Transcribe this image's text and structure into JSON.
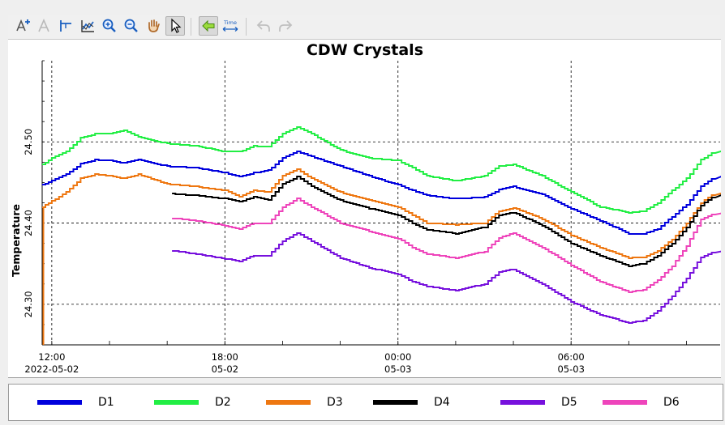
{
  "toolbar": {
    "buttons": [
      {
        "name": "add-label-icon",
        "enabled": true
      },
      {
        "name": "text-label-icon",
        "enabled": false
      },
      {
        "name": "axis-cursor-icon",
        "enabled": true
      },
      {
        "name": "chart-settings-icon",
        "enabled": true
      },
      {
        "name": "zoom-in-icon",
        "enabled": true
      },
      {
        "name": "zoom-out-icon",
        "enabled": true
      },
      {
        "name": "pan-hand-icon",
        "enabled": true
      },
      {
        "name": "pointer-icon",
        "enabled": true,
        "active": true
      },
      {
        "name": "back-arrow-icon",
        "enabled": true,
        "active": true
      },
      {
        "name": "time-scale-icon",
        "enabled": true,
        "label": "Time"
      },
      {
        "name": "undo-icon",
        "enabled": false
      },
      {
        "name": "redo-icon",
        "enabled": false
      }
    ]
  },
  "colors": {
    "D1": "#0000dd",
    "D2": "#22ee44",
    "D3": "#ee7711",
    "D4": "#000000",
    "D5": "#7711dd",
    "D6": "#ee44bb",
    "marker": "#ee7711"
  },
  "chart_data": {
    "type": "line",
    "title": "CDW Crystals",
    "ylabel": "Temperature",
    "xlabel": "",
    "ylim": [
      24.25,
      24.6
    ],
    "xlim": [
      "2022-05-02 11:40",
      "2022-05-03 11:10"
    ],
    "grid": true,
    "legend_position": "bottom",
    "y_ticks": [
      "24.30",
      "24.40",
      "24.50"
    ],
    "x_ticks": [
      {
        "time": "2022-05-02 12:00",
        "line1": "12:00",
        "line2": "2022-05-02"
      },
      {
        "time": "2022-05-02 18:00",
        "line1": "18:00",
        "line2": "05-02"
      },
      {
        "time": "2022-05-03 00:00",
        "line1": "00:00",
        "line2": "05-03"
      },
      {
        "time": "2022-05-03 06:00",
        "line1": "06:00",
        "line2": "05-03"
      }
    ],
    "series": [
      {
        "name": "D1",
        "points": [
          [
            "2022-05-02 11:40",
            24.447
          ],
          [
            "2022-05-02 12:00",
            24.452
          ],
          [
            "2022-05-02 12:30",
            24.46
          ],
          [
            "2022-05-02 13:00",
            24.473
          ],
          [
            "2022-05-02 13:30",
            24.478
          ],
          [
            "2022-05-02 14:00",
            24.477
          ],
          [
            "2022-05-02 14:30",
            24.474
          ],
          [
            "2022-05-02 15:00",
            24.478
          ],
          [
            "2022-05-02 16:00",
            24.47
          ],
          [
            "2022-05-02 17:00",
            24.468
          ],
          [
            "2022-05-02 18:00",
            24.462
          ],
          [
            "2022-05-02 18:30",
            24.457
          ],
          [
            "2022-05-02 19:00",
            24.462
          ],
          [
            "2022-05-02 19:30",
            24.465
          ],
          [
            "2022-05-02 20:00",
            24.48
          ],
          [
            "2022-05-02 20:30",
            24.488
          ],
          [
            "2022-05-02 21:00",
            24.482
          ],
          [
            "2022-05-02 22:00",
            24.47
          ],
          [
            "2022-05-02 23:00",
            24.458
          ],
          [
            "2022-05-03 00:00",
            24.447
          ],
          [
            "2022-05-03 00:30",
            24.44
          ],
          [
            "2022-05-03 01:00",
            24.434
          ],
          [
            "2022-05-03 02:00",
            24.43
          ],
          [
            "2022-05-03 03:00",
            24.432
          ],
          [
            "2022-05-03 03:30",
            24.441
          ],
          [
            "2022-05-03 04:00",
            24.445
          ],
          [
            "2022-05-03 05:00",
            24.435
          ],
          [
            "2022-05-03 06:00",
            24.418
          ],
          [
            "2022-05-03 07:00",
            24.403
          ],
          [
            "2022-05-03 08:00",
            24.387
          ],
          [
            "2022-05-03 08:30",
            24.387
          ],
          [
            "2022-05-03 09:00",
            24.393
          ],
          [
            "2022-05-03 09:30",
            24.408
          ],
          [
            "2022-05-03 10:00",
            24.423
          ],
          [
            "2022-05-03 10:30",
            24.445
          ],
          [
            "2022-05-03 11:00",
            24.458
          ]
        ]
      },
      {
        "name": "D2",
        "points": [
          [
            "2022-05-02 11:40",
            24.472
          ],
          [
            "2022-05-02 12:00",
            24.48
          ],
          [
            "2022-05-02 12:30",
            24.488
          ],
          [
            "2022-05-02 13:00",
            24.505
          ],
          [
            "2022-05-02 13:30",
            24.51
          ],
          [
            "2022-05-02 14:00",
            24.51
          ],
          [
            "2022-05-02 14:30",
            24.514
          ],
          [
            "2022-05-02 15:00",
            24.506
          ],
          [
            "2022-05-02 16:00",
            24.498
          ],
          [
            "2022-05-02 17:00",
            24.495
          ],
          [
            "2022-05-02 18:00",
            24.488
          ],
          [
            "2022-05-02 18:30",
            24.488
          ],
          [
            "2022-05-02 19:00",
            24.495
          ],
          [
            "2022-05-02 19:30",
            24.494
          ],
          [
            "2022-05-02 20:00",
            24.51
          ],
          [
            "2022-05-02 20:30",
            24.518
          ],
          [
            "2022-05-02 21:00",
            24.51
          ],
          [
            "2022-05-02 22:00",
            24.49
          ],
          [
            "2022-05-02 23:00",
            24.48
          ],
          [
            "2022-05-03 00:00",
            24.477
          ],
          [
            "2022-05-03 00:30",
            24.468
          ],
          [
            "2022-05-03 01:00",
            24.458
          ],
          [
            "2022-05-03 02:00",
            24.452
          ],
          [
            "2022-05-03 03:00",
            24.458
          ],
          [
            "2022-05-03 03:30",
            24.47
          ],
          [
            "2022-05-03 04:00",
            24.472
          ],
          [
            "2022-05-03 05:00",
            24.458
          ],
          [
            "2022-05-03 06:00",
            24.438
          ],
          [
            "2022-05-03 07:00",
            24.42
          ],
          [
            "2022-05-03 08:00",
            24.413
          ],
          [
            "2022-05-03 08:30",
            24.415
          ],
          [
            "2022-05-03 09:00",
            24.425
          ],
          [
            "2022-05-03 09:30",
            24.44
          ],
          [
            "2022-05-03 10:00",
            24.455
          ],
          [
            "2022-05-03 10:30",
            24.478
          ],
          [
            "2022-05-03 11:00",
            24.489
          ]
        ]
      },
      {
        "name": "D3",
        "points": [
          [
            "2022-05-02 11:40",
            24.42
          ],
          [
            "2022-05-02 12:00",
            24.427
          ],
          [
            "2022-05-02 12:30",
            24.438
          ],
          [
            "2022-05-02 13:00",
            24.455
          ],
          [
            "2022-05-02 13:30",
            24.46
          ],
          [
            "2022-05-02 14:00",
            24.458
          ],
          [
            "2022-05-02 14:30",
            24.455
          ],
          [
            "2022-05-02 15:00",
            24.46
          ],
          [
            "2022-05-02 16:00",
            24.448
          ],
          [
            "2022-05-02 17:00",
            24.445
          ],
          [
            "2022-05-02 18:00",
            24.44
          ],
          [
            "2022-05-02 18:30",
            24.432
          ],
          [
            "2022-05-02 19:00",
            24.44
          ],
          [
            "2022-05-02 19:30",
            24.438
          ],
          [
            "2022-05-02 20:00",
            24.458
          ],
          [
            "2022-05-02 20:30",
            24.466
          ],
          [
            "2022-05-02 21:00",
            24.455
          ],
          [
            "2022-05-02 22:00",
            24.438
          ],
          [
            "2022-05-02 23:00",
            24.428
          ],
          [
            "2022-05-03 00:00",
            24.42
          ],
          [
            "2022-05-03 00:30",
            24.41
          ],
          [
            "2022-05-03 01:00",
            24.4
          ],
          [
            "2022-05-03 02:00",
            24.398
          ],
          [
            "2022-05-03 03:00",
            24.4
          ],
          [
            "2022-05-03 03:30",
            24.415
          ],
          [
            "2022-05-03 04:00",
            24.419
          ],
          [
            "2022-05-03 05:00",
            24.405
          ],
          [
            "2022-05-03 06:00",
            24.385
          ],
          [
            "2022-05-03 07:00",
            24.37
          ],
          [
            "2022-05-03 08:00",
            24.357
          ],
          [
            "2022-05-03 08:30",
            24.358
          ],
          [
            "2022-05-03 09:00",
            24.366
          ],
          [
            "2022-05-03 09:30",
            24.38
          ],
          [
            "2022-05-03 10:00",
            24.4
          ],
          [
            "2022-05-03 10:30",
            24.425
          ],
          [
            "2022-05-03 11:00",
            24.437
          ]
        ]
      },
      {
        "name": "D4",
        "points": [
          [
            "2022-05-02 16:10",
            24.436
          ],
          [
            "2022-05-02 17:00",
            24.434
          ],
          [
            "2022-05-02 18:00",
            24.43
          ],
          [
            "2022-05-02 18:30",
            24.426
          ],
          [
            "2022-05-02 19:00",
            24.432
          ],
          [
            "2022-05-02 19:30",
            24.428
          ],
          [
            "2022-05-02 20:00",
            24.448
          ],
          [
            "2022-05-02 20:30",
            24.457
          ],
          [
            "2022-05-02 21:00",
            24.445
          ],
          [
            "2022-05-02 22:00",
            24.428
          ],
          [
            "2022-05-02 23:00",
            24.418
          ],
          [
            "2022-05-03 00:00",
            24.41
          ],
          [
            "2022-05-03 00:30",
            24.4
          ],
          [
            "2022-05-03 01:00",
            24.392
          ],
          [
            "2022-05-03 02:00",
            24.387
          ],
          [
            "2022-05-03 03:00",
            24.395
          ],
          [
            "2022-05-03 03:30",
            24.41
          ],
          [
            "2022-05-03 04:00",
            24.413
          ],
          [
            "2022-05-03 05:00",
            24.397
          ],
          [
            "2022-05-03 06:00",
            24.375
          ],
          [
            "2022-05-03 07:00",
            24.36
          ],
          [
            "2022-05-03 08:00",
            24.347
          ],
          [
            "2022-05-03 08:30",
            24.35
          ],
          [
            "2022-05-03 09:00",
            24.36
          ],
          [
            "2022-05-03 09:30",
            24.375
          ],
          [
            "2022-05-03 10:00",
            24.395
          ],
          [
            "2022-05-03 10:30",
            24.422
          ],
          [
            "2022-05-03 11:00",
            24.435
          ]
        ]
      },
      {
        "name": "D5",
        "points": [
          [
            "2022-05-02 16:10",
            24.366
          ],
          [
            "2022-05-02 17:00",
            24.362
          ],
          [
            "2022-05-02 18:00",
            24.356
          ],
          [
            "2022-05-02 18:30",
            24.353
          ],
          [
            "2022-05-02 19:00",
            24.36
          ],
          [
            "2022-05-02 19:30",
            24.36
          ],
          [
            "2022-05-02 20:00",
            24.378
          ],
          [
            "2022-05-02 20:30",
            24.388
          ],
          [
            "2022-05-02 21:00",
            24.378
          ],
          [
            "2022-05-02 22:00",
            24.357
          ],
          [
            "2022-05-02 23:00",
            24.345
          ],
          [
            "2022-05-03 00:00",
            24.337
          ],
          [
            "2022-05-03 00:30",
            24.328
          ],
          [
            "2022-05-03 01:00",
            24.322
          ],
          [
            "2022-05-03 02:00",
            24.317
          ],
          [
            "2022-05-03 03:00",
            24.325
          ],
          [
            "2022-05-03 03:30",
            24.34
          ],
          [
            "2022-05-03 04:00",
            24.343
          ],
          [
            "2022-05-03 05:00",
            24.325
          ],
          [
            "2022-05-03 06:00",
            24.303
          ],
          [
            "2022-05-03 07:00",
            24.287
          ],
          [
            "2022-05-03 08:00",
            24.277
          ],
          [
            "2022-05-03 08:30",
            24.28
          ],
          [
            "2022-05-03 09:00",
            24.292
          ],
          [
            "2022-05-03 09:30",
            24.31
          ],
          [
            "2022-05-03 10:00",
            24.332
          ],
          [
            "2022-05-03 10:30",
            24.358
          ],
          [
            "2022-05-03 11:00",
            24.366
          ]
        ]
      },
      {
        "name": "D6",
        "points": [
          [
            "2022-05-02 16:10",
            24.406
          ],
          [
            "2022-05-02 17:00",
            24.403
          ],
          [
            "2022-05-02 18:00",
            24.397
          ],
          [
            "2022-05-02 18:30",
            24.393
          ],
          [
            "2022-05-02 19:00",
            24.4
          ],
          [
            "2022-05-02 19:30",
            24.4
          ],
          [
            "2022-05-02 20:00",
            24.42
          ],
          [
            "2022-05-02 20:30",
            24.43
          ],
          [
            "2022-05-02 21:00",
            24.42
          ],
          [
            "2022-05-02 22:00",
            24.4
          ],
          [
            "2022-05-02 23:00",
            24.39
          ],
          [
            "2022-05-03 00:00",
            24.381
          ],
          [
            "2022-05-03 00:30",
            24.37
          ],
          [
            "2022-05-03 01:00",
            24.362
          ],
          [
            "2022-05-03 02:00",
            24.357
          ],
          [
            "2022-05-03 03:00",
            24.365
          ],
          [
            "2022-05-03 03:30",
            24.382
          ],
          [
            "2022-05-03 04:00",
            24.388
          ],
          [
            "2022-05-03 05:00",
            24.37
          ],
          [
            "2022-05-03 06:00",
            24.348
          ],
          [
            "2022-05-03 07:00",
            24.328
          ],
          [
            "2022-05-03 08:00",
            24.315
          ],
          [
            "2022-05-03 08:30",
            24.318
          ],
          [
            "2022-05-03 09:00",
            24.33
          ],
          [
            "2022-05-03 09:30",
            24.347
          ],
          [
            "2022-05-03 10:00",
            24.372
          ],
          [
            "2022-05-03 10:30",
            24.405
          ],
          [
            "2022-05-03 11:00",
            24.413
          ]
        ]
      }
    ]
  },
  "legend": [
    "D1",
    "D2",
    "D3",
    "D4",
    "D5",
    "D6"
  ]
}
